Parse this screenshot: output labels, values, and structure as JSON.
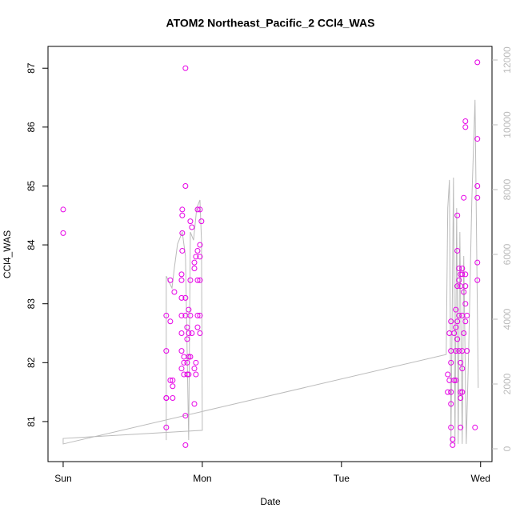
{
  "chart_data": {
    "type": "scatter",
    "title": "ATOM2 Northeast_Pacific_2 CCl4_WAS",
    "x_label": "Date",
    "y_label": "CCl4_WAS",
    "xlim": [
      -0.109,
      3.082
    ],
    "xticks": [
      {
        "value": 0,
        "label": "Sun"
      },
      {
        "value": 1,
        "label": "Mon"
      },
      {
        "value": 2,
        "label": "Tue"
      },
      {
        "value": 3,
        "label": "Wed"
      }
    ],
    "ylim": [
      80.32,
      87.37
    ],
    "yticks": [
      81,
      82,
      83,
      84,
      85,
      86,
      87
    ],
    "y2lim": [
      -395,
      12420
    ],
    "y2ticks": [
      0,
      2000,
      4000,
      6000,
      8000,
      10000,
      12000
    ],
    "series": [
      {
        "type": "scatter",
        "color": "#e600e6",
        "x": [
          0,
          0,
          0.741,
          0.741,
          0.741,
          0.741,
          0.741,
          0.77,
          0.77,
          0.77,
          0.787,
          0.787,
          0.787,
          0.799,
          0.851,
          0.851,
          0.851,
          0.851,
          0.851,
          0.851,
          0.851,
          0.856,
          0.856,
          0.856,
          0.856,
          0.868,
          0.868,
          0.868,
          0.879,
          0.879,
          0.879,
          0.879,
          0.879,
          0.879,
          0.891,
          0.891,
          0.891,
          0.891,
          0.902,
          0.902,
          0.902,
          0.902,
          0.914,
          0.914,
          0.914,
          0.914,
          0.925,
          0.925,
          0.943,
          0.943,
          0.943,
          0.943,
          0.954,
          0.954,
          0.954,
          0.966,
          0.966,
          0.966,
          0.966,
          0.966,
          0.983,
          0.983,
          0.983,
          0.983,
          0.983,
          0.983,
          0.994,
          2.764,
          2.764,
          2.776,
          2.776,
          2.787,
          2.787,
          2.787,
          2.787,
          2.787,
          2.787,
          2.799,
          2.799,
          2.81,
          2.81,
          2.822,
          2.822,
          2.822,
          2.822,
          2.833,
          2.833,
          2.833,
          2.833,
          2.833,
          2.845,
          2.845,
          2.845,
          2.845,
          2.856,
          2.856,
          2.856,
          2.856,
          2.856,
          2.856,
          2.868,
          2.868,
          2.868,
          2.868,
          2.868,
          2.868,
          2.879,
          2.879,
          2.879,
          2.891,
          2.891,
          2.891,
          2.891,
          2.891,
          2.891,
          2.902,
          2.902,
          2.96,
          2.977,
          2.977,
          2.977,
          2.977,
          2.977,
          2.977
        ],
        "values": [
          84.6,
          84.2,
          82.8,
          82.2,
          81.4,
          81.4,
          80.9,
          83.4,
          82.7,
          81.7,
          81.7,
          81.6,
          81.4,
          83.2,
          83.5,
          83.4,
          83.1,
          82.8,
          82.5,
          82.2,
          81.9,
          84.6,
          84.5,
          84.2,
          83.9,
          82.1,
          82.0,
          81.8,
          87.0,
          85.0,
          83.1,
          82.8,
          81.1,
          80.6,
          82.6,
          82.4,
          82.0,
          81.8,
          82.9,
          82.5,
          82.1,
          81.8,
          84.4,
          83.4,
          82.8,
          82.1,
          84.3,
          82.5,
          83.7,
          83.6,
          81.9,
          81.3,
          83.8,
          82.0,
          81.8,
          84.6,
          83.9,
          83.4,
          82.8,
          82.6,
          84.6,
          84.0,
          83.8,
          83.4,
          82.8,
          82.5,
          84.4,
          81.8,
          81.5,
          82.5,
          81.7,
          82.7,
          82.2,
          82.0,
          81.5,
          81.3,
          80.9,
          80.7,
          80.6,
          82.5,
          81.7,
          82.9,
          82.6,
          82.2,
          81.7,
          84.5,
          83.9,
          83.3,
          82.7,
          82.4,
          83.6,
          83.4,
          82.8,
          82.2,
          83.5,
          83.3,
          82.0,
          81.5,
          81.4,
          80.9,
          83.6,
          83.5,
          82.8,
          82.2,
          81.9,
          81.5,
          84.8,
          83.2,
          82.5,
          86.1,
          86.0,
          83.5,
          83.3,
          83.0,
          82.7,
          82.8,
          82.2,
          80.9,
          87.1,
          85.8,
          85.0,
          84.8,
          83.7,
          83.4
        ]
      },
      {
        "type": "line",
        "axis": "y2",
        "color": "#bbbbbb",
        "x": [
          0.741,
          0.741,
          0.782,
          0.799,
          0.822,
          0.856,
          0.879,
          0.902,
          0.914,
          0.937,
          0.96,
          0.983,
          0.994,
          1.0,
          0,
          0,
          2.753,
          2.764,
          2.776,
          2.787,
          2.805,
          2.816,
          2.828,
          2.839,
          2.851,
          2.868,
          2.879,
          2.897,
          2.914,
          2.937,
          2.96,
          2.983
        ],
        "values": [
          270,
          5330,
          4960,
          5580,
          6320,
          6690,
          5950,
          270,
          6690,
          6440,
          7430,
          7680,
          6440,
          570,
          320,
          150,
          2910,
          7430,
          8300,
          150,
          8370,
          150,
          7430,
          150,
          6690,
          150,
          5950,
          150,
          2990,
          7680,
          10770,
          1880
        ]
      }
    ]
  }
}
